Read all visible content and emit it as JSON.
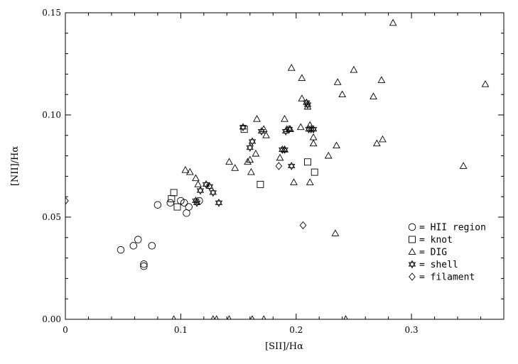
{
  "chart_data": {
    "type": "scatter",
    "xlabel": "[SII]/Hα",
    "ylabel": "[NII]/Hα",
    "xlim": [
      0,
      0.38
    ],
    "ylim": [
      0,
      0.15
    ],
    "xticks": [
      0,
      0.1,
      0.2,
      0.3
    ],
    "xtick_labels": [
      "0",
      "0.1",
      "0.2",
      "0.3"
    ],
    "yticks": [
      0,
      0.05,
      0.1,
      0.15
    ],
    "ytick_labels": [
      "0.00",
      "0.05",
      "0.10",
      "0.15"
    ],
    "grid": false,
    "legend_position": "bottom-right",
    "series": [
      {
        "name": "HII region",
        "marker": "circle",
        "x": [
          0.048,
          0.059,
          0.063,
          0.068,
          0.068,
          0.075,
          0.08,
          0.091,
          0.1,
          0.103,
          0.105,
          0.107,
          0.116
        ],
        "y": [
          0.034,
          0.036,
          0.039,
          0.027,
          0.026,
          0.036,
          0.056,
          0.057,
          0.058,
          0.057,
          0.052,
          0.055,
          0.058
        ]
      },
      {
        "name": "knot",
        "marker": "square",
        "x": [
          0.092,
          0.094,
          0.097,
          0.155,
          0.169,
          0.21,
          0.216
        ],
        "y": [
          0.059,
          0.062,
          0.055,
          0.093,
          0.066,
          0.077,
          0.072
        ]
      },
      {
        "name": "DIG",
        "marker": "triangle",
        "x": [
          0.104,
          0.108,
          0.113,
          0.115,
          0.142,
          0.147,
          0.158,
          0.16,
          0.161,
          0.165,
          0.166,
          0.172,
          0.174,
          0.186,
          0.19,
          0.19,
          0.192,
          0.195,
          0.196,
          0.198,
          0.204,
          0.205,
          0.205,
          0.21,
          0.212,
          0.212,
          0.215,
          0.215,
          0.228,
          0.234,
          0.235,
          0.236,
          0.24,
          0.25,
          0.267,
          0.27,
          0.274,
          0.275,
          0.284,
          0.345,
          0.364
        ],
        "y": [
          0.073,
          0.072,
          0.069,
          0.066,
          0.077,
          0.074,
          0.077,
          0.078,
          0.072,
          0.081,
          0.098,
          0.093,
          0.09,
          0.079,
          0.083,
          0.098,
          0.093,
          0.093,
          0.123,
          0.067,
          0.094,
          0.108,
          0.118,
          0.104,
          0.067,
          0.095,
          0.089,
          0.086,
          0.08,
          0.042,
          0.085,
          0.116,
          0.11,
          0.122,
          0.109,
          0.086,
          0.117,
          0.088,
          0.145,
          0.075,
          0.115
        ]
      },
      {
        "name": "shell",
        "marker": "star",
        "x": [
          0.113,
          0.114,
          0.117,
          0.122,
          0.125,
          0.128,
          0.133,
          0.154,
          0.16,
          0.162,
          0.17,
          0.188,
          0.19,
          0.191,
          0.194,
          0.196,
          0.209,
          0.21,
          0.211,
          0.213,
          0.215
        ],
        "y": [
          0.058,
          0.057,
          0.063,
          0.066,
          0.065,
          0.062,
          0.057,
          0.094,
          0.084,
          0.087,
          0.092,
          0.083,
          0.083,
          0.092,
          0.093,
          0.075,
          0.106,
          0.105,
          0.093,
          0.093,
          0.093
        ]
      },
      {
        "name": "filament",
        "marker": "diamond",
        "x": [
          0.0,
          0.185,
          0.206
        ],
        "y": [
          0.058,
          0.075,
          0.046
        ]
      }
    ],
    "axis_edge_markers": [
      {
        "marker": "triangle",
        "x": [
          0.094,
          0.128,
          0.131,
          0.142,
          0.162,
          0.172,
          0.243
        ],
        "y": [
          0,
          0,
          0,
          0,
          0,
          0,
          0
        ]
      }
    ]
  }
}
